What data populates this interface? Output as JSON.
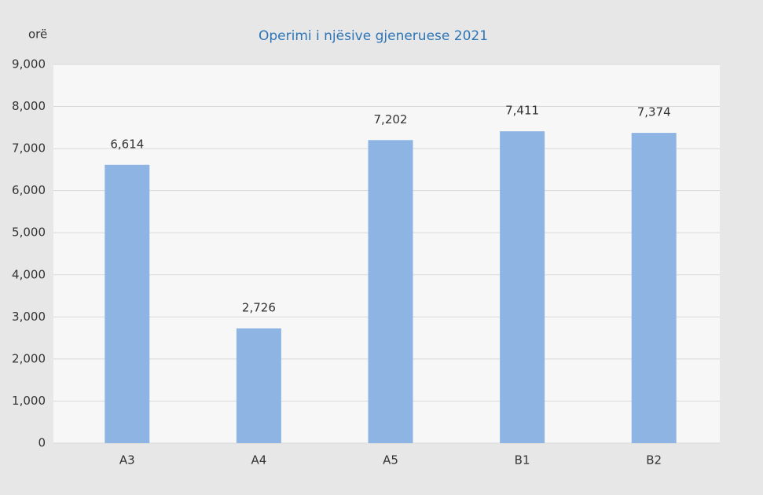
{
  "chart_data": {
    "type": "bar",
    "title": "Operimi i njësive gjeneruese 2021",
    "y_label": "orë",
    "categories": [
      "A3",
      "A4",
      "A5",
      "B1",
      "B2"
    ],
    "values": [
      6614,
      2726,
      7202,
      7411,
      7374
    ],
    "value_labels": [
      "6,614",
      "2,726",
      "7,202",
      "7,411",
      "7,374"
    ],
    "color": "#8eb4e3",
    "ylim": [
      0,
      9000
    ],
    "yticks": [
      0,
      {
        "value": 1000,
        "label": "1,000"
      },
      {
        "value": 2000,
        "label": "2,000"
      },
      {
        "value": 3000,
        "label": "3,000"
      },
      {
        "value": 4000,
        "label": "4,000"
      },
      {
        "value": 5000,
        "label": "5,000"
      },
      {
        "value": 6000,
        "label": "6,000"
      },
      {
        "value": 7000,
        "label": "7,000"
      },
      {
        "value": 8000,
        "label": "8,000"
      },
      {
        "value": 9000,
        "label": "9,000"
      }
    ],
    "grid": true
  }
}
